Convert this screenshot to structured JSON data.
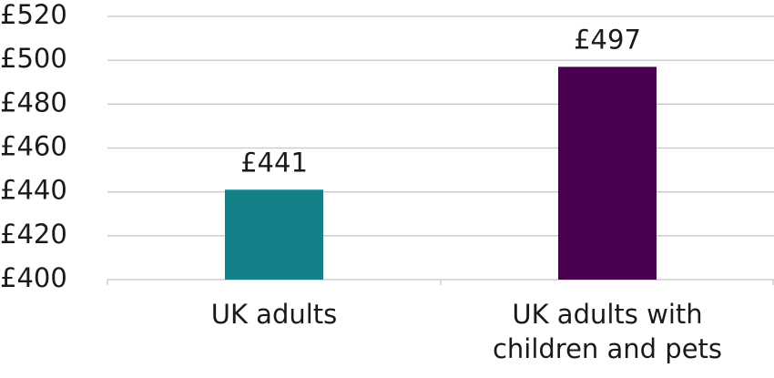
{
  "chart_data": {
    "type": "bar",
    "categories": [
      "UK adults",
      "UK adults with children and pets"
    ],
    "values": [
      441,
      497
    ],
    "value_labels": [
      "£441",
      "£497"
    ],
    "colors": [
      "#138189",
      "#4a0050"
    ],
    "ylim": [
      400,
      520
    ],
    "yticks": [
      {
        "value": 400,
        "label": "£400"
      },
      {
        "value": 420,
        "label": "£420"
      },
      {
        "value": 440,
        "label": "£440"
      },
      {
        "value": 460,
        "label": "£460"
      },
      {
        "value": 480,
        "label": "£480"
      },
      {
        "value": 500,
        "label": "£500"
      },
      {
        "value": 520,
        "label": "£520"
      }
    ],
    "grid": true
  }
}
